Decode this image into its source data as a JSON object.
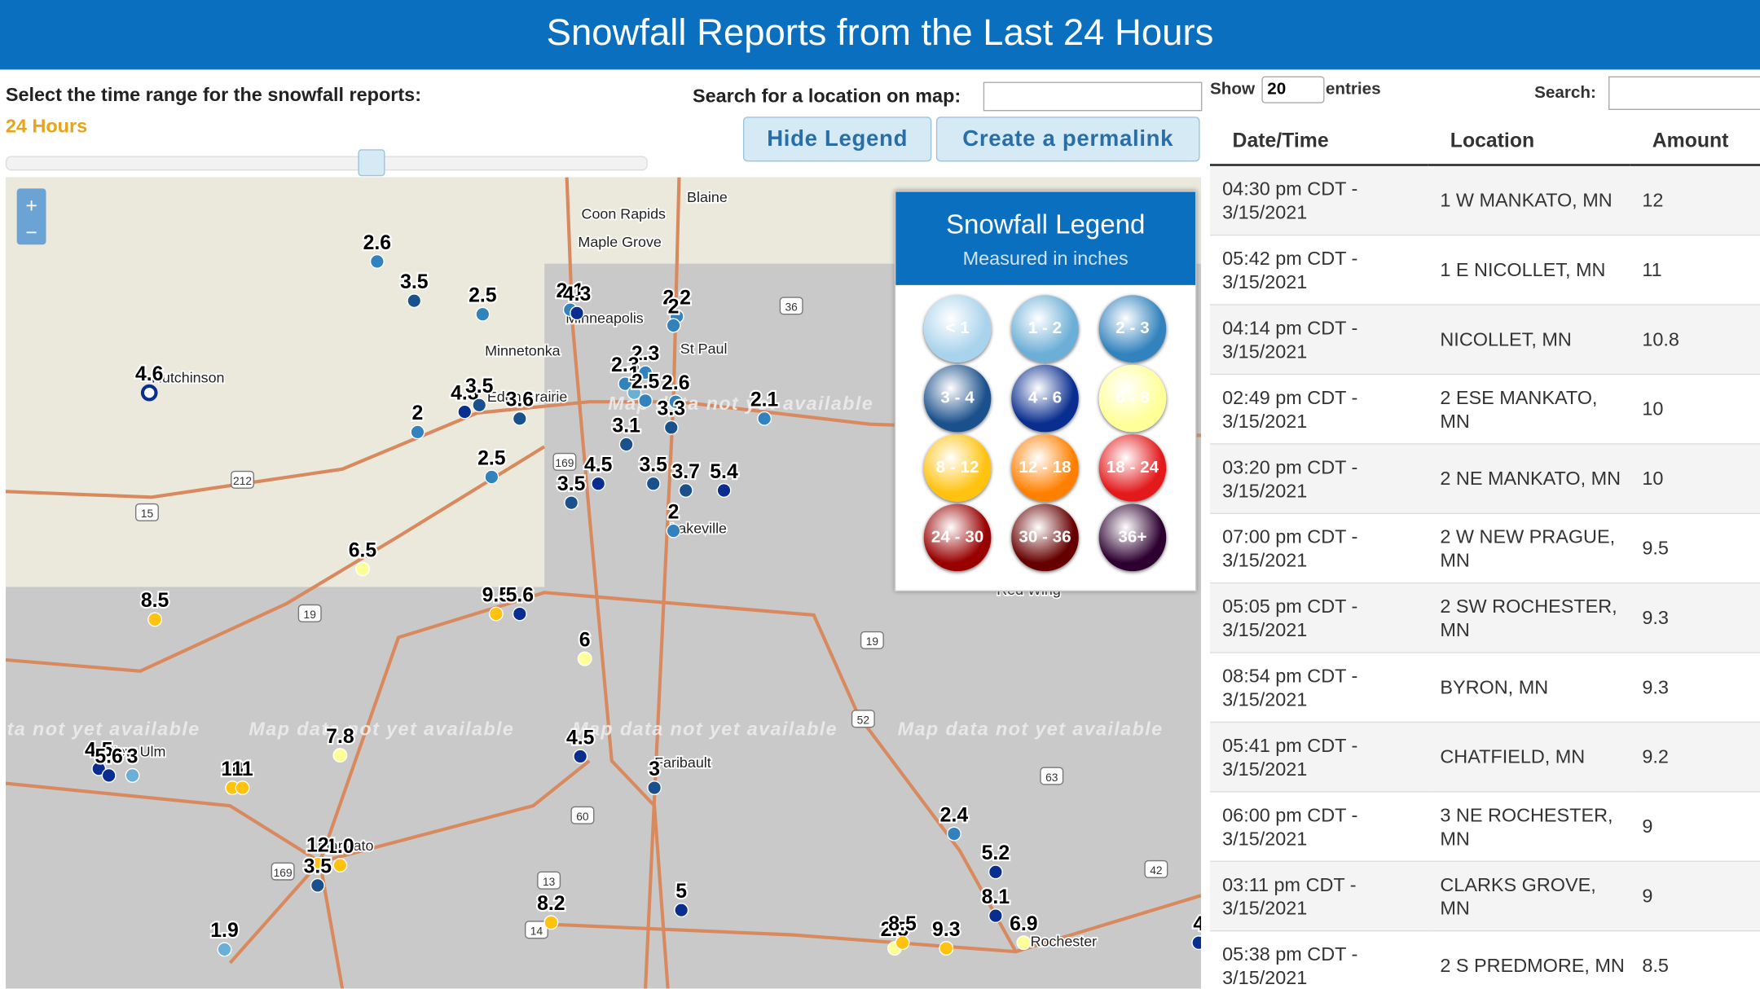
{
  "header": {
    "title": "Snowfall Reports from the Last 24 Hours"
  },
  "controls": {
    "time_range_label": "Select the time range for the snowfall reports:",
    "time_range_value": "24 Hours",
    "search_map_label": "Search for a location on map:",
    "hide_legend": "Hide Legend",
    "permalink": "Create a permalink",
    "zoom_in": "+",
    "zoom_out": "−"
  },
  "legend": {
    "title": "Snowfall Legend",
    "subtitle": "Measured in inches",
    "bins": [
      "< 1",
      "1 - 2",
      "2 - 3",
      "3 - 4",
      "4 - 6",
      "6 - 8",
      "8 - 12",
      "12 - 18",
      "18 - 24",
      "24 - 30",
      "30 - 36",
      "36+"
    ]
  },
  "map": {
    "places": [
      "Blaine",
      "Coon Rapids",
      "Maple Grove",
      "Minneapolis",
      "St Paul",
      "Minnetonka",
      "Eden Prairie",
      "Hutchinson",
      "Lakeville",
      "New Ulm",
      "Faribault",
      "Mankato",
      "Rochester",
      "Red Wing"
    ],
    "notices": [
      "Map data not yet available",
      "Map data not yet available",
      "Map data not yet available",
      "Map data not yet available",
      "Map data not yet available"
    ],
    "shields": [
      "36",
      "169",
      "212",
      "15",
      "19",
      "19",
      "52",
      "60",
      "13",
      "14",
      "63",
      "42",
      "169"
    ],
    "reports": [
      "2.6",
      "3.5",
      "2.5",
      "2.1",
      "4.3",
      "2.2",
      "2",
      "2.3",
      "2.3",
      "2.6",
      "1",
      "2.5",
      "3.3",
      "3.1",
      "4.3",
      "3.5",
      "3.6",
      "2",
      "2.1",
      "2.5",
      "4.5",
      "3.5",
      "3.5",
      "3.7",
      "5.4",
      "2",
      "4.6",
      "6.5",
      "8.5",
      "9.5",
      "5.6",
      "6",
      "4.5",
      "7.8",
      "10",
      "11",
      "4.5",
      "5.6",
      "3",
      "3",
      "1.0",
      "12",
      "3.5",
      "2.4",
      "5.2",
      "8.2",
      "5",
      "1.9",
      "2.5",
      "8.5",
      "9.3",
      "8.1",
      "6.9",
      "4"
    ]
  },
  "table": {
    "show": "Show",
    "page_size": "20",
    "entries": "entries",
    "search": "Search:",
    "columns": [
      "Date/Time",
      "Location",
      "Amount"
    ],
    "rows": [
      [
        "04:30 pm CDT - 3/15/2021",
        "1 W MANKATO, MN",
        "12"
      ],
      [
        "05:42 pm CDT - 3/15/2021",
        "1 E NICOLLET, MN",
        "11"
      ],
      [
        "04:14 pm CDT - 3/15/2021",
        "NICOLLET, MN",
        "10.8"
      ],
      [
        "02:49 pm CDT - 3/15/2021",
        "2 ESE MANKATO, MN",
        "10"
      ],
      [
        "03:20 pm CDT - 3/15/2021",
        "2 NE MANKATO, MN",
        "10"
      ],
      [
        "07:00 pm CDT - 3/15/2021",
        "2 W NEW PRAGUE, MN",
        "9.5"
      ],
      [
        "05:05 pm CDT - 3/15/2021",
        "2 SW ROCHESTER, MN",
        "9.3"
      ],
      [
        "08:54 pm CDT - 3/15/2021",
        "BYRON, MN",
        "9.3"
      ],
      [
        "05:41 pm CDT - 3/15/2021",
        "CHATFIELD, MN",
        "9.2"
      ],
      [
        "06:00 pm CDT - 3/15/2021",
        "3 NE ROCHESTER, MN",
        "9"
      ],
      [
        "03:11 pm CDT - 3/15/2021",
        "CLARKS GROVE, MN",
        "9"
      ],
      [
        "05:38 pm CDT - 3/15/2021",
        "2 S PREDMORE, MN",
        "8.5"
      ]
    ]
  }
}
